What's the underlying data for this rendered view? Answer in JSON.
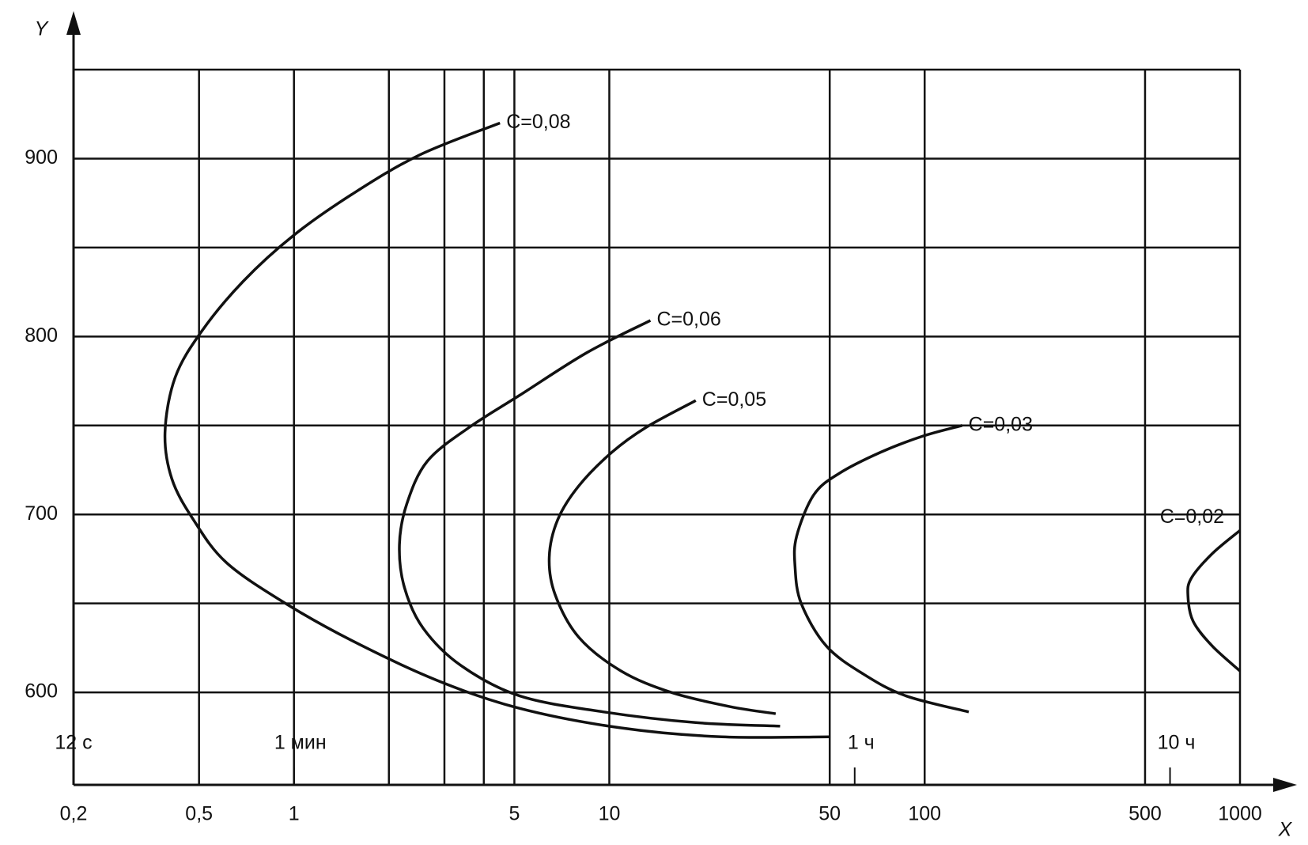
{
  "chart_data": {
    "type": "line",
    "x_axis_label": "X",
    "y_axis_label": "Y",
    "log_x": true,
    "xlim": [
      0.2,
      1000
    ],
    "ylim": [
      548,
      950
    ],
    "xticks": [
      {
        "value": 0.2,
        "label": "0,2"
      },
      {
        "value": 0.5,
        "label": "0,5"
      },
      1,
      5,
      10,
      50,
      100,
      500,
      1000
    ],
    "x_grid_extra": [
      2,
      3,
      4
    ],
    "yticks": [
      600,
      700,
      800,
      900
    ],
    "y_grid_extra": [
      650,
      750,
      850,
      950
    ],
    "time_marks": [
      {
        "value": 0.2,
        "label": "12 с"
      },
      {
        "value": 1,
        "label": "1 мин"
      },
      {
        "value": 60,
        "label": "1 ч"
      },
      {
        "value": 600,
        "label": "10 ч"
      }
    ],
    "grid": true,
    "color": "#111111",
    "series": [
      {
        "name": "C=0,08",
        "x": [
          4.5,
          2.5,
          1.53,
          1.0,
          0.69,
          0.51,
          0.42,
          0.39,
          0.41,
          0.48,
          0.61,
          0.94,
          1.53,
          2.82,
          5.2,
          10.9,
          22.7,
          50.2
        ],
        "values": [
          920,
          902,
          880,
          857,
          831,
          803,
          777,
          746,
          720,
          697,
          673,
          650,
          629,
          607,
          591,
          580,
          575,
          575
        ]
      },
      {
        "name": "C=0,06",
        "x": [
          13.5,
          8.5,
          5.2,
          3.6,
          2.65,
          2.28,
          2.16,
          2.24,
          2.57,
          3.39,
          5.2,
          9.6,
          18.8,
          34.8
        ],
        "values": [
          809,
          791,
          767,
          749,
          730,
          706,
          683,
          659,
          636,
          615,
          598,
          589,
          583,
          581
        ]
      },
      {
        "name": "C=0,05",
        "x": [
          18.8,
          13.1,
          10.2,
          8.0,
          6.86,
          6.45,
          6.73,
          8.0,
          10.9,
          15.7,
          24.1,
          33.7
        ],
        "values": [
          764,
          749,
          735,
          716,
          697,
          676,
          655,
          631,
          612,
          600,
          592,
          588
        ]
      },
      {
        "name": "C=0,03",
        "x": [
          131.5,
          98.6,
          72.6,
          53.5,
          44.5,
          39.3,
          38.8,
          40.6,
          48.8,
          64.3,
          87.3,
          138
        ],
        "values": [
          750,
          744,
          735,
          723,
          711,
          688,
          671,
          650,
          626,
          610,
          598,
          589
        ]
      },
      {
        "name": "C=0,02",
        "x": [
          1000,
          817,
          700,
          684,
          710,
          817,
          1000
        ],
        "values": [
          691,
          678,
          664,
          654,
          640,
          626,
          612
        ]
      }
    ]
  }
}
